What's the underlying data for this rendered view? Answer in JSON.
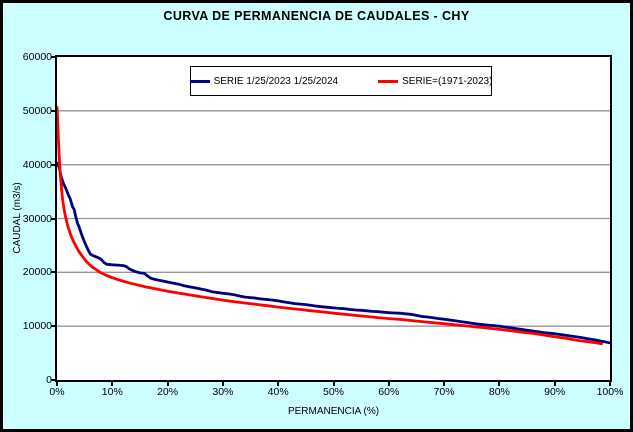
{
  "window": {
    "title": "CURVA DE PERMANENCIA DE CAUDALES - CHY",
    "background": "#CCFFFF"
  },
  "axes": {
    "x_label": "PERMANENCIA (%)",
    "y_label": "CAUDAL (m3/s)",
    "x_max": 100,
    "y_max": 60000,
    "grid_color": "#969696",
    "x_ticks": [
      {
        "value": 0,
        "label": "0%"
      },
      {
        "value": 10,
        "label": "10%"
      },
      {
        "value": 20,
        "label": "20%"
      },
      {
        "value": 30,
        "label": "30%"
      },
      {
        "value": 40,
        "label": "40%"
      },
      {
        "value": 50,
        "label": "50%"
      },
      {
        "value": 60,
        "label": "60%"
      },
      {
        "value": 70,
        "label": "70%"
      },
      {
        "value": 80,
        "label": "80%"
      },
      {
        "value": 90,
        "label": "90%"
      },
      {
        "value": 100,
        "label": "100%"
      }
    ],
    "y_ticks": [
      {
        "value": 0,
        "label": "0"
      },
      {
        "value": 10000,
        "label": "10000"
      },
      {
        "value": 20000,
        "label": "20000"
      },
      {
        "value": 30000,
        "label": "30000"
      },
      {
        "value": 40000,
        "label": "40000"
      },
      {
        "value": 50000,
        "label": "50000"
      },
      {
        "value": 60000,
        "label": "60000"
      }
    ],
    "y_gridlines": [
      10000,
      20000,
      30000,
      40000,
      50000
    ]
  },
  "chart_data": {
    "type": "line",
    "title": "CURVA DE PERMANENCIA DE CAUDALES - CHY",
    "xlabel": "PERMANENCIA (%)",
    "ylabel": "CAUDAL (m3/s)",
    "xlim": [
      0,
      100
    ],
    "ylim": [
      0,
      60000
    ],
    "grid": "horizontal",
    "legend_position": "top-center",
    "series": [
      {
        "name": "SERIE 1/25/2023 1/25/2024",
        "color": "#000080",
        "line_width": 2.8,
        "points": [
          [
            0,
            40300
          ],
          [
            0.4,
            39500
          ],
          [
            0.8,
            37600
          ],
          [
            1.2,
            36400
          ],
          [
            1.6,
            35600
          ],
          [
            2,
            34500
          ],
          [
            2.4,
            33600
          ],
          [
            2.8,
            32200
          ],
          [
            3.1,
            31700
          ],
          [
            3.4,
            30300
          ],
          [
            3.7,
            29100
          ],
          [
            4,
            28400
          ],
          [
            4.4,
            27200
          ],
          [
            4.8,
            26100
          ],
          [
            5.2,
            25100
          ],
          [
            5.6,
            24200
          ],
          [
            6,
            23400
          ],
          [
            6.5,
            23100
          ],
          [
            7,
            22900
          ],
          [
            7.5,
            22700
          ],
          [
            8,
            22400
          ],
          [
            8.5,
            21800
          ],
          [
            9,
            21500
          ],
          [
            10,
            21400
          ],
          [
            11,
            21350
          ],
          [
            12,
            21250
          ],
          [
            12.5,
            21100
          ],
          [
            13,
            20700
          ],
          [
            14,
            20200
          ],
          [
            15,
            19900
          ],
          [
            15.8,
            19800
          ],
          [
            16.5,
            19200
          ],
          [
            17,
            18900
          ],
          [
            18,
            18600
          ],
          [
            19,
            18400
          ],
          [
            20,
            18200
          ],
          [
            21,
            18000
          ],
          [
            22,
            17800
          ],
          [
            23,
            17500
          ],
          [
            24,
            17300
          ],
          [
            25,
            17100
          ],
          [
            26,
            16900
          ],
          [
            27,
            16700
          ],
          [
            28,
            16400
          ],
          [
            29,
            16250
          ],
          [
            30,
            16100
          ],
          [
            31,
            16000
          ],
          [
            32,
            15850
          ],
          [
            33,
            15600
          ],
          [
            34,
            15400
          ],
          [
            35,
            15300
          ],
          [
            36,
            15200
          ],
          [
            37,
            15050
          ],
          [
            38,
            14950
          ],
          [
            39,
            14850
          ],
          [
            40,
            14700
          ],
          [
            41,
            14500
          ],
          [
            42,
            14350
          ],
          [
            43,
            14200
          ],
          [
            44,
            14100
          ],
          [
            45,
            14000
          ],
          [
            46,
            13850
          ],
          [
            47,
            13700
          ],
          [
            48,
            13600
          ],
          [
            49,
            13500
          ],
          [
            50,
            13400
          ],
          [
            51,
            13300
          ],
          [
            52,
            13250
          ],
          [
            53,
            13100
          ],
          [
            54,
            13000
          ],
          [
            55,
            12950
          ],
          [
            56,
            12850
          ],
          [
            57,
            12750
          ],
          [
            58,
            12700
          ],
          [
            59,
            12600
          ],
          [
            60,
            12500
          ],
          [
            61,
            12450
          ],
          [
            62,
            12400
          ],
          [
            63,
            12300
          ],
          [
            64,
            12200
          ],
          [
            65,
            12000
          ],
          [
            66,
            11800
          ],
          [
            67,
            11700
          ],
          [
            68,
            11550
          ],
          [
            69,
            11400
          ],
          [
            70,
            11300
          ],
          [
            71,
            11150
          ],
          [
            72,
            11000
          ],
          [
            73,
            10850
          ],
          [
            74,
            10700
          ],
          [
            75,
            10550
          ],
          [
            76,
            10400
          ],
          [
            77,
            10300
          ],
          [
            78,
            10200
          ],
          [
            79,
            10100
          ],
          [
            80,
            10000
          ],
          [
            81,
            9850
          ],
          [
            82,
            9700
          ],
          [
            83,
            9550
          ],
          [
            84,
            9400
          ],
          [
            85,
            9250
          ],
          [
            86,
            9100
          ],
          [
            87,
            8950
          ],
          [
            88,
            8800
          ],
          [
            89,
            8700
          ],
          [
            90,
            8600
          ],
          [
            91,
            8450
          ],
          [
            92,
            8300
          ],
          [
            93,
            8150
          ],
          [
            94,
            8000
          ],
          [
            95,
            7850
          ],
          [
            96,
            7650
          ],
          [
            97,
            7500
          ],
          [
            98,
            7300
          ],
          [
            99,
            7100
          ],
          [
            100,
            6900
          ]
        ]
      },
      {
        "name": "SERIE=(1971-2023)",
        "color": "#FF0000",
        "line_width": 2.8,
        "points": [
          [
            0,
            50700
          ],
          [
            0.15,
            47500
          ],
          [
            0.3,
            43500
          ],
          [
            0.45,
            40500
          ],
          [
            0.6,
            38200
          ],
          [
            0.8,
            35700
          ],
          [
            1,
            33700
          ],
          [
            1.3,
            31600
          ],
          [
            1.6,
            30100
          ],
          [
            2,
            28400
          ],
          [
            2.5,
            26900
          ],
          [
            3,
            25700
          ],
          [
            3.5,
            24700
          ],
          [
            4,
            23800
          ],
          [
            4.5,
            23100
          ],
          [
            5,
            22400
          ],
          [
            5.5,
            21800
          ],
          [
            6,
            21300
          ],
          [
            6.5,
            20900
          ],
          [
            7,
            20600
          ],
          [
            7.5,
            20200
          ],
          [
            8,
            19900
          ],
          [
            9,
            19400
          ],
          [
            10,
            19000
          ],
          [
            11,
            18650
          ],
          [
            12,
            18350
          ],
          [
            13,
            18050
          ],
          [
            14,
            17800
          ],
          [
            15,
            17550
          ],
          [
            16,
            17300
          ],
          [
            17,
            17100
          ],
          [
            18,
            16900
          ],
          [
            19,
            16700
          ],
          [
            20,
            16500
          ],
          [
            22,
            16150
          ],
          [
            24,
            15800
          ],
          [
            26,
            15450
          ],
          [
            28,
            15150
          ],
          [
            30,
            14850
          ],
          [
            32,
            14550
          ],
          [
            34,
            14300
          ],
          [
            36,
            14050
          ],
          [
            38,
            13800
          ],
          [
            40,
            13550
          ],
          [
            42,
            13300
          ],
          [
            44,
            13100
          ],
          [
            46,
            12850
          ],
          [
            48,
            12650
          ],
          [
            50,
            12400
          ],
          [
            52,
            12200
          ],
          [
            54,
            12000
          ],
          [
            56,
            11800
          ],
          [
            58,
            11600
          ],
          [
            60,
            11400
          ],
          [
            62,
            11250
          ],
          [
            64,
            11050
          ],
          [
            66,
            10850
          ],
          [
            68,
            10650
          ],
          [
            70,
            10450
          ],
          [
            72,
            10250
          ],
          [
            74,
            10050
          ],
          [
            76,
            9850
          ],
          [
            78,
            9650
          ],
          [
            80,
            9400
          ],
          [
            82,
            9150
          ],
          [
            84,
            8900
          ],
          [
            86,
            8650
          ],
          [
            88,
            8350
          ],
          [
            90,
            8050
          ],
          [
            92,
            7750
          ],
          [
            94,
            7400
          ],
          [
            96,
            7100
          ],
          [
            97.5,
            6900
          ],
          [
            98.5,
            6750
          ]
        ]
      }
    ]
  }
}
